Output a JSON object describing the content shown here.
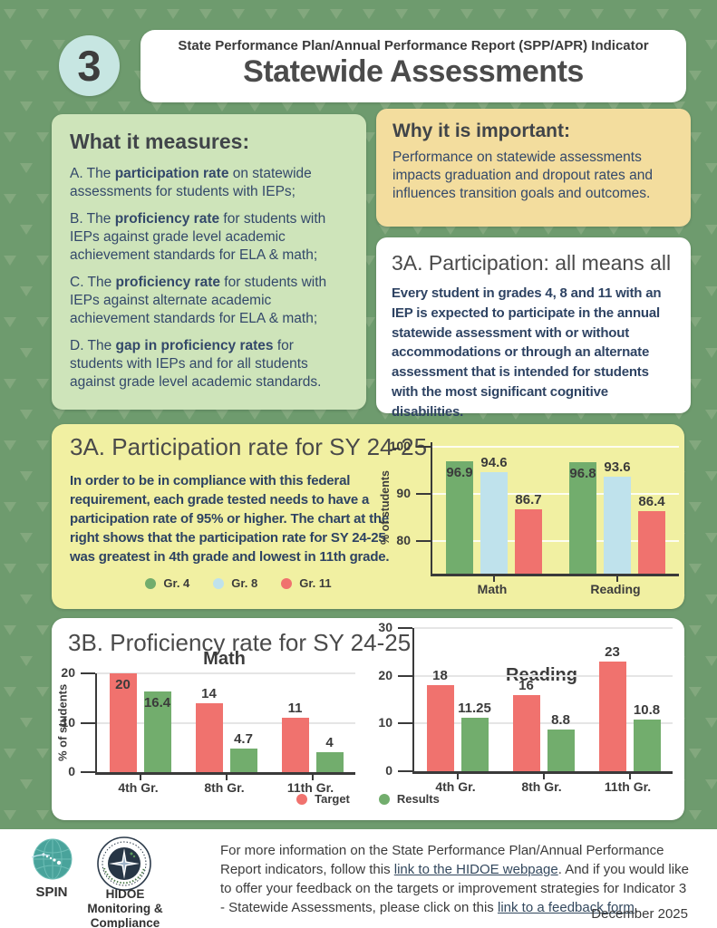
{
  "colors": {
    "page_bg": "#6e9b6e",
    "pattern_triangle": "#83a87e",
    "badge_bg": "#c7e6e2",
    "light_green_box": "#cee4ba",
    "tan_box": "#f3dd9e",
    "yellow_box": "#f1f0a2",
    "navy_text": "#2e4363",
    "bar_green": "#72ad6d",
    "bar_blue": "#bfe2ec",
    "bar_red": "#f0726e"
  },
  "header": {
    "indicator_number": "3",
    "kicker": "State Performance Plan/Annual Performance Report (SPP/APR) Indicator",
    "title": "Statewide Assessments"
  },
  "what_it_measures": {
    "heading": "What it measures:",
    "items": [
      {
        "pre": "A. The ",
        "bold": "participation rate",
        "post": " on statewide assessments for students with IEPs;"
      },
      {
        "pre": "B. The ",
        "bold": "proficiency rate",
        "post": " for students with IEPs against grade level academic achievement standards for ELA & math;"
      },
      {
        "pre": "C. The ",
        "bold": "proficiency rate",
        "post": " for students with IEPs against alternate academic achievement standards for ELA & math;"
      },
      {
        "pre": "D. The ",
        "bold": "gap in proficiency rates",
        "post": " for students with IEPs and for all students against grade level academic standards."
      }
    ]
  },
  "why_important": {
    "heading": "Why it is important:",
    "body": "Performance on statewide assessments impacts graduation and dropout rates and influences transition goals and outcomes."
  },
  "participation_all": {
    "heading": "3A. Participation: all means all",
    "body": "Every student in grades 4, 8 and 11 with an IEP is expected to participate in the annual statewide assessment with or without accommodations or through an alternate assessment that is intended for students with the most significant cognitive disabilities."
  },
  "participation_rate": {
    "heading": "3A. Participation rate for SY 24-25",
    "body": "In order to be in compliance with this federal requirement, each grade tested needs to have a participation rate of 95% or higher.  The chart at the right shows that the participation rate for SY 24-25 was greatest in 4th grade and lowest in 11th grade."
  },
  "proficiency": {
    "heading": "3B. Proficiency rate for SY 24-25"
  },
  "chart_data": [
    {
      "type": "bar",
      "title": "",
      "categories": [
        "Math",
        "Reading"
      ],
      "series": [
        {
          "name": "Gr. 4",
          "color": "#72ad6d",
          "values": [
            96.9,
            96.8
          ]
        },
        {
          "name": "Gr. 8",
          "color": "#bfe2ec",
          "values": [
            94.6,
            93.6
          ]
        },
        {
          "name": "Gr. 11",
          "color": "#f0726e",
          "values": [
            86.7,
            86.4
          ]
        }
      ],
      "xlabel": "",
      "ylabel": "% of students",
      "ylim": [
        73,
        101
      ],
      "yticks": [
        80,
        90,
        100
      ],
      "grid": true,
      "legend_position": "left of chart, under text"
    },
    {
      "type": "bar",
      "title": "Math",
      "categories": [
        "4th Gr.",
        "8th Gr.",
        "11th Gr."
      ],
      "series": [
        {
          "name": "Target",
          "color": "#f0726e",
          "values": [
            20,
            14,
            11
          ]
        },
        {
          "name": "Results",
          "color": "#72ad6d",
          "values": [
            16.4,
            4.7,
            4
          ]
        }
      ],
      "xlabel": "",
      "ylabel": "% of students",
      "ylim": [
        0,
        20
      ],
      "yticks": [
        0,
        10,
        20
      ],
      "grid": true,
      "legend_position": "bottom center, shared"
    },
    {
      "type": "bar",
      "title": "Reading",
      "categories": [
        "4th Gr.",
        "8th Gr.",
        "11th Gr."
      ],
      "series": [
        {
          "name": "Target",
          "color": "#f0726e",
          "values": [
            18,
            16,
            23
          ]
        },
        {
          "name": "Results",
          "color": "#72ad6d",
          "values": [
            11.25,
            8.8,
            10.8
          ]
        }
      ],
      "xlabel": "",
      "ylabel": "",
      "ylim": [
        0,
        30
      ],
      "yticks": [
        0,
        10,
        20,
        30
      ],
      "grid": true,
      "legend_position": "bottom center, shared"
    }
  ],
  "footer": {
    "spin_label": "SPIN",
    "hidoe_label_line1": "HIDOE Monitoring &",
    "hidoe_label_line2": "Compliance Branch",
    "text_before_link1": "For more information on the State Performance Plan/Annual Performance Report indicators, follow this ",
    "link1": "link to the HIDOE webpage",
    "text_between_links": ".  And if you would like to offer your feedback on the targets or improvement strategies for Indicator 3 - Statewide Assessments, please click on this ",
    "link2": "link to a feedback form",
    "text_after_link2": ".",
    "date": "December 2025"
  }
}
